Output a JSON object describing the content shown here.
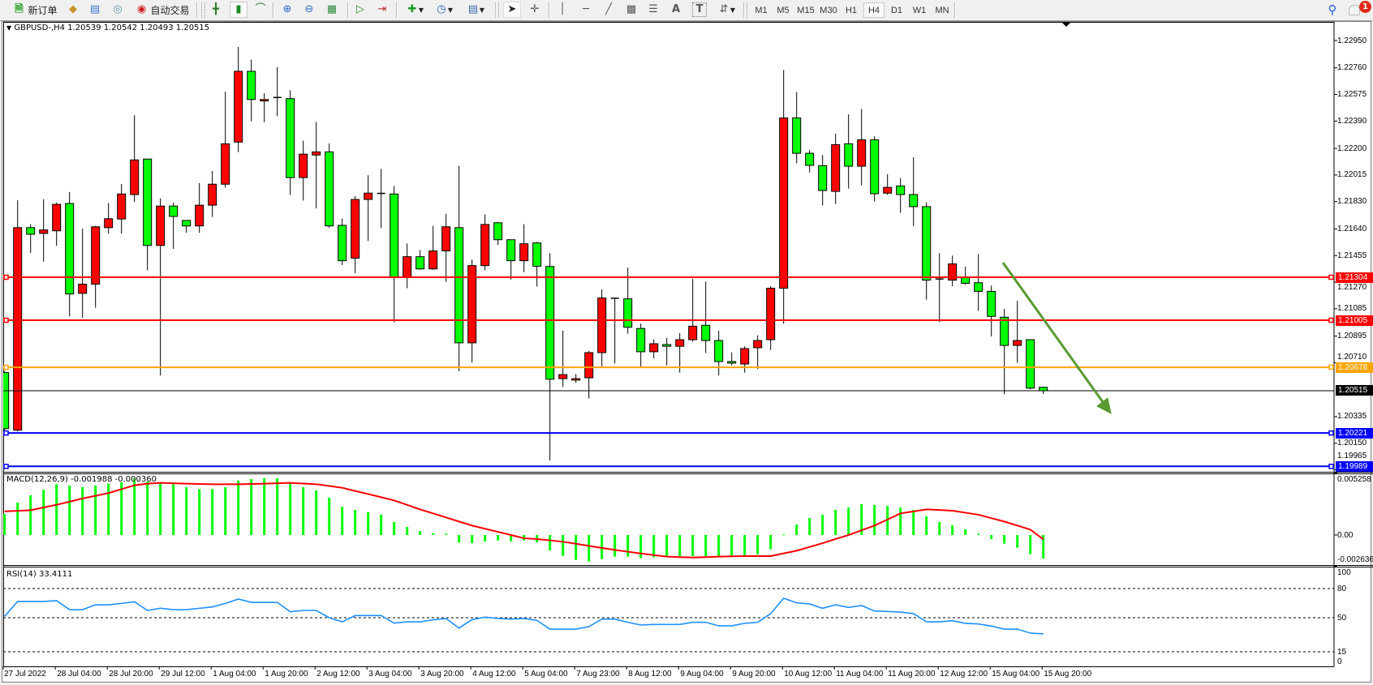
{
  "toolbar": {
    "new_order_label": "新订单",
    "auto_trading_label": "自动交易",
    "icons": [
      "new-order-icon",
      "market-watch-icon",
      "navigator-icon",
      "signals-icon",
      "auto-trading-icon",
      "bar-chart-icon",
      "candlestick-icon",
      "line-chart-icon",
      "zoom-in-icon",
      "zoom-out-icon",
      "tile-windows-icon",
      "chart-shift-icon",
      "autoscroll-icon",
      "new-indicator-icon",
      "periods-icon",
      "templates-icon",
      "cursor-icon",
      "crosshair-icon",
      "vertical-line-icon",
      "horizontal-line-icon",
      "trendline-icon",
      "equidistant-channel-icon",
      "fibonacci-icon",
      "text-icon",
      "text-label-icon",
      "arrows-icon",
      "search-icon",
      "notifications-icon"
    ],
    "timeframes": [
      "M1",
      "M5",
      "M15",
      "M30",
      "H1",
      "H4",
      "D1",
      "W1",
      "MN"
    ],
    "active_timeframe": "H4",
    "notifications_count": "1"
  },
  "chart": {
    "header": "GBPUSD-,H4  1.20539 1.20542 1.20493 1.20515",
    "bull_color": "#ff0000",
    "bear_color": "#00ff00",
    "price_ticks": [
      "1.22950",
      "1.22760",
      "1.22575",
      "1.22390",
      "1.22200",
      "1.22015",
      "1.21830",
      "1.21640",
      "1.21455",
      "1.21270",
      "1.21085",
      "1.20895",
      "1.20710",
      "1.20335",
      "1.20150",
      "1.19965"
    ],
    "levels": [
      {
        "price": "1.21304",
        "color": "#ff0000"
      },
      {
        "price": "1.21005",
        "color": "#ff0000"
      },
      {
        "price": "1.20678",
        "color": "#ffa500"
      },
      {
        "price": "1.20221",
        "color": "#0000ff"
      },
      {
        "price": "1.19989",
        "color": "#0000ff"
      }
    ],
    "bid": {
      "price": "1.20515",
      "color": "#000000"
    },
    "arrow_color": "#5a9a32",
    "time_labels": [
      "27 Jul 2022",
      "28 Jul 04:00",
      "28 Jul 20:00",
      "29 Jul 12:00",
      "1 Aug 04:00",
      "1 Aug 20:00",
      "2 Aug 12:00",
      "3 Aug 04:00",
      "3 Aug 20:00",
      "4 Aug 12:00",
      "5 Aug 04:00",
      "7 Aug 23:00",
      "8 Aug 12:00",
      "9 Aug 04:00",
      "9 Aug 20:00",
      "10 Aug 12:00",
      "11 Aug 04:00",
      "11 Aug 20:00",
      "12 Aug 12:00",
      "15 Aug 04:00",
      "15 Aug 20:00"
    ]
  },
  "macd": {
    "title": "MACD(12,26,9) -0.001988 -0.000360",
    "axis": [
      "0.005258",
      "0.00",
      "-0.002636"
    ],
    "hist_color": "#00ff00",
    "signal_color": "#ff0000"
  },
  "rsi": {
    "title": "RSI(14) 33.4111",
    "axis": [
      "100",
      "80",
      "50",
      "15",
      "0"
    ],
    "levels": [
      80,
      50,
      15
    ],
    "color": "#1e90ff"
  },
  "chart_data": {
    "type": "candlestick",
    "symbol": "GBPUSD-",
    "timeframe": "H4",
    "ylim": [
      1.19965,
      1.23
    ],
    "ohlc": [
      [
        1.20641,
        1.20651,
        1.20211,
        1.20251
      ],
      [
        1.20241,
        1.21839,
        1.20231,
        1.21649
      ],
      [
        1.21649,
        1.21673,
        1.21473,
        1.21603
      ],
      [
        1.21609,
        1.21847,
        1.21413,
        1.21633
      ],
      [
        1.21627,
        1.21823,
        1.21523,
        1.21811
      ],
      [
        1.21817,
        1.21897,
        1.21032,
        1.21188
      ],
      [
        1.21192,
        1.21643,
        1.21022,
        1.21256
      ],
      [
        1.21256,
        1.21661,
        1.21092,
        1.21655
      ],
      [
        1.21649,
        1.21819,
        1.21607,
        1.21711
      ],
      [
        1.21709,
        1.21953,
        1.21607,
        1.21883
      ],
      [
        1.21879,
        1.2243,
        1.21827,
        1.2212
      ],
      [
        1.22126,
        1.22126,
        1.21352,
        1.21525
      ],
      [
        1.21525,
        1.21853,
        1.20621,
        1.21799
      ],
      [
        1.21799,
        1.21823,
        1.21501,
        1.21727
      ],
      [
        1.21699,
        1.21699,
        1.21613,
        1.21661
      ],
      [
        1.21661,
        1.21959,
        1.21613,
        1.21805
      ],
      [
        1.21805,
        1.22043,
        1.21723,
        1.21951
      ],
      [
        1.21951,
        1.22594,
        1.21927,
        1.22232
      ],
      [
        1.22244,
        1.22905,
        1.22174,
        1.22736
      ],
      [
        1.22736,
        1.22817,
        1.22388,
        1.2254
      ],
      [
        1.2253,
        1.22584,
        1.22382,
        1.2254
      ],
      [
        1.22554,
        1.22765,
        1.22424,
        1.22554
      ],
      [
        1.22546,
        1.22604,
        1.21877,
        1.21997
      ],
      [
        1.21997,
        1.22254,
        1.21837,
        1.2216
      ],
      [
        1.22154,
        1.22384,
        1.21783,
        1.22176
      ],
      [
        1.22176,
        1.22234,
        1.21647,
        1.21661
      ],
      [
        1.21665,
        1.21713,
        1.21389,
        1.21419
      ],
      [
        1.21437,
        1.21869,
        1.21332,
        1.21845
      ],
      [
        1.21845,
        1.22013,
        1.21557,
        1.21889
      ],
      [
        1.21887,
        1.22057,
        1.21647,
        1.21887
      ],
      [
        1.21883,
        1.21939,
        1.20992,
        1.21302
      ],
      [
        1.21302,
        1.21539,
        1.21228,
        1.21447
      ],
      [
        1.21447,
        1.21493,
        1.21356,
        1.21362
      ],
      [
        1.21362,
        1.21661,
        1.21356,
        1.21487
      ],
      [
        1.21487,
        1.21745,
        1.21272,
        1.21655
      ],
      [
        1.21649,
        1.22078,
        1.20651,
        1.20848
      ],
      [
        1.20848,
        1.21427,
        1.20711,
        1.21385
      ],
      [
        1.21385,
        1.21741,
        1.21352,
        1.21671
      ],
      [
        1.21683,
        1.21689,
        1.21529,
        1.21565
      ],
      [
        1.21565,
        1.21565,
        1.21288,
        1.21419
      ],
      [
        1.21419,
        1.21673,
        1.2134,
        1.21537
      ],
      [
        1.21543,
        1.21549,
        1.2124,
        1.21381
      ],
      [
        1.21379,
        1.21471,
        1.2003,
        1.20595
      ],
      [
        1.20599,
        1.20932,
        1.20541,
        1.20627
      ],
      [
        1.20589,
        1.20631,
        1.20571,
        1.20599
      ],
      [
        1.20605,
        1.20792,
        1.20461,
        1.2078
      ],
      [
        1.2078,
        1.21218,
        1.20685,
        1.2116
      ],
      [
        1.21158,
        1.21158,
        1.20705,
        1.21158
      ],
      [
        1.21154,
        1.21371,
        1.20912,
        1.20956
      ],
      [
        1.20948,
        1.20982,
        1.20685,
        1.20786
      ],
      [
        1.20786,
        1.20872,
        1.20741,
        1.20842
      ],
      [
        1.20836,
        1.20882,
        1.20691,
        1.20824
      ],
      [
        1.20824,
        1.20916,
        1.20641,
        1.2087
      ],
      [
        1.2087,
        1.21292,
        1.20856,
        1.20964
      ],
      [
        1.2097,
        1.21274,
        1.20778,
        1.20864
      ],
      [
        1.20864,
        1.20932,
        1.20621,
        1.20718
      ],
      [
        1.20718,
        1.20782,
        1.20691,
        1.20707
      ],
      [
        1.20701,
        1.20824,
        1.20641,
        1.20808
      ],
      [
        1.20814,
        1.209,
        1.20665,
        1.20864
      ],
      [
        1.2087,
        1.21242,
        1.20798,
        1.21228
      ],
      [
        1.21228,
        1.22745,
        1.2098,
        1.22412
      ],
      [
        1.22412,
        1.22592,
        1.22096,
        1.22166
      ],
      [
        1.22166,
        1.2219,
        1.22033,
        1.22082
      ],
      [
        1.2208,
        1.22154,
        1.21803,
        1.21907
      ],
      [
        1.21901,
        1.22302,
        1.21813,
        1.22226
      ],
      [
        1.22232,
        1.22436,
        1.21921,
        1.22076
      ],
      [
        1.22076,
        1.22474,
        1.21943,
        1.2226
      ],
      [
        1.2226,
        1.22284,
        1.21831,
        1.21885
      ],
      [
        1.21889,
        1.22021,
        1.21877,
        1.21929
      ],
      [
        1.21939,
        1.21993,
        1.21753,
        1.21879
      ],
      [
        1.21879,
        1.22138,
        1.21659,
        1.21795
      ],
      [
        1.21795,
        1.21825,
        1.21148,
        1.21284
      ],
      [
        1.21292,
        1.21471,
        1.20992,
        1.21292
      ],
      [
        1.21284,
        1.21455,
        1.21242,
        1.21397
      ],
      [
        1.21302,
        1.21377,
        1.21252,
        1.21262
      ],
      [
        1.21266,
        1.21465,
        1.2107,
        1.21206
      ],
      [
        1.21206,
        1.21246,
        1.20892,
        1.21032
      ],
      [
        1.21026,
        1.21084,
        1.20491,
        1.2083
      ],
      [
        1.2083,
        1.2114,
        1.20709,
        1.20864
      ],
      [
        1.2087,
        1.2087,
        1.20525,
        1.20533
      ],
      [
        1.20539,
        1.20542,
        1.20493,
        1.20515
      ]
    ],
    "macd_main": [
      0.00178,
      0.00274,
      0.00336,
      0.00384,
      0.0043,
      0.00419,
      0.00405,
      0.00419,
      0.00435,
      0.00446,
      0.0048,
      0.00453,
      0.00446,
      0.0043,
      0.00405,
      0.00389,
      0.00389,
      0.00405,
      0.00462,
      0.00473,
      0.0048,
      0.0048,
      0.00435,
      0.00405,
      0.00377,
      0.00316,
      0.0024,
      0.00213,
      0.00192,
      0.00172,
      0.0011,
      0.00069,
      0.00034,
      0.00014,
      0.00011,
      -0.00064,
      -0.00069,
      -0.00055,
      -0.00046,
      -0.00053,
      -0.00046,
      -0.00062,
      -0.0013,
      -0.00176,
      -0.0021,
      -0.00224,
      -0.00204,
      -0.00183,
      -0.00183,
      -0.00197,
      -0.00188,
      -0.00178,
      -0.00178,
      -0.00178,
      -0.00178,
      -0.00178,
      -0.00178,
      -0.00178,
      -0.00165,
      -0.00121,
      5e-05,
      0.00089,
      0.00144,
      0.00172,
      0.00213,
      0.00233,
      0.00261,
      0.00254,
      0.00247,
      0.00233,
      0.00213,
      0.00158,
      0.0011,
      0.00082,
      0.00048,
      0.00011,
      -0.00034,
      -0.00073,
      -0.00107,
      -0.00162,
      -0.001988
    ],
    "macd_signal": [
      0.00201,
      0.00205,
      0.0021,
      0.00233,
      0.00256,
      0.00282,
      0.00309,
      0.00332,
      0.00355,
      0.00388,
      0.00421,
      0.00435,
      0.00442,
      0.00438,
      0.00435,
      0.00432,
      0.0043,
      0.0043,
      0.0043,
      0.00432,
      0.00435,
      0.00438,
      0.00442,
      0.00436,
      0.0043,
      0.00415,
      0.004,
      0.00373,
      0.00347,
      0.0032,
      0.00293,
      0.00255,
      0.00217,
      0.00183,
      0.00149,
      0.00114,
      0.0008,
      0.00053,
      0.00027,
      0.0,
      -0.00027,
      -0.00034,
      -0.00045,
      -0.00057,
      -0.00074,
      -0.00092,
      -0.00109,
      -0.00126,
      -0.00141,
      -0.00156,
      -0.0017,
      -0.00183,
      -0.00187,
      -0.0019,
      -0.00187,
      -0.00183,
      -0.0018,
      -0.00178,
      -0.00178,
      -0.00178,
      -0.00155,
      -0.00133,
      -0.00101,
      -0.00069,
      -0.00034,
      0.0,
      0.0004,
      0.0008,
      0.00131,
      0.00183,
      0.002,
      0.00217,
      0.00212,
      0.00206,
      0.00189,
      0.00172,
      0.00143,
      0.00114,
      0.0008,
      0.00046,
      -0.00036
    ],
    "macd_range": [
      -0.002636,
      0.005258
    ],
    "rsi": [
      51.4,
      66.7,
      66.7,
      66.7,
      67.5,
      58.3,
      58.3,
      63.3,
      63.3,
      64.7,
      66.4,
      57.5,
      59.7,
      58.3,
      58.3,
      59.7,
      61.1,
      64.7,
      69.2,
      65.8,
      65.8,
      65.8,
      56.1,
      57.5,
      57.5,
      50.0,
      45.8,
      52.2,
      52.2,
      52.2,
      44.4,
      45.8,
      45.8,
      47.8,
      49.2,
      39.4,
      48.1,
      50.6,
      49.2,
      48.6,
      49.2,
      47.2,
      38.3,
      38.3,
      38.3,
      40.8,
      48.6,
      48.6,
      45.3,
      42.5,
      43.1,
      43.1,
      43.1,
      45.3,
      45.3,
      41.7,
      41.7,
      44.2,
      45.3,
      54.2,
      70.0,
      65.3,
      64.2,
      59.7,
      63.3,
      60.6,
      62.5,
      56.9,
      56.4,
      55.8,
      54.2,
      45.8,
      45.8,
      46.9,
      44.2,
      43.6,
      41.4,
      38.3,
      38.3,
      34.2,
      33.41
    ]
  }
}
